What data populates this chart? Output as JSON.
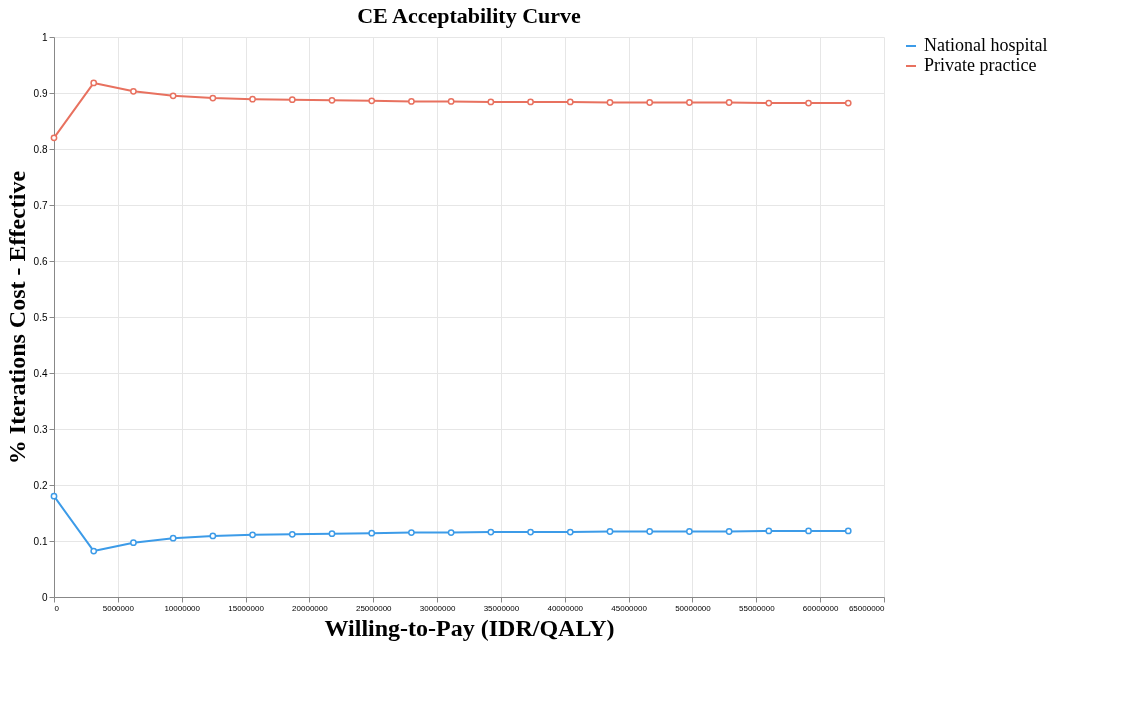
{
  "chart_data": {
    "type": "line",
    "title": "CE Acceptability Curve",
    "xlabel": "Willing-to-Pay (IDR/QALY)",
    "ylabel": "% Iterations Cost - Effective",
    "x": [
      0,
      3110000,
      6220000,
      9330000,
      12440000,
      15550000,
      18660000,
      21770000,
      24880000,
      27990000,
      31100000,
      34210000,
      37320000,
      40430000,
      43540000,
      46650000,
      49760000,
      52870000,
      55980000,
      59090000,
      62200000
    ],
    "series": [
      {
        "name": "National hospital",
        "color": "#3c9be8",
        "values": [
          0.18,
          0.082,
          0.097,
          0.105,
          0.109,
          0.111,
          0.112,
          0.113,
          0.114,
          0.115,
          0.115,
          0.116,
          0.116,
          0.116,
          0.117,
          0.117,
          0.117,
          0.117,
          0.118,
          0.118,
          0.118
        ]
      },
      {
        "name": "Private practice",
        "color": "#e8715f",
        "values": [
          0.82,
          0.918,
          0.903,
          0.895,
          0.891,
          0.889,
          0.888,
          0.887,
          0.886,
          0.885,
          0.885,
          0.884,
          0.884,
          0.884,
          0.883,
          0.883,
          0.883,
          0.883,
          0.882,
          0.882,
          0.882
        ]
      }
    ],
    "xlim": [
      0,
      65000000
    ],
    "xticks": [
      0,
      5000000,
      10000000,
      15000000,
      20000000,
      25000000,
      30000000,
      35000000,
      40000000,
      45000000,
      50000000,
      55000000,
      60000000,
      65000000
    ],
    "ylim": [
      0,
      1
    ],
    "yticks": [
      0,
      0.1,
      0.2,
      0.3,
      0.4,
      0.5,
      0.6,
      0.7,
      0.8,
      0.9,
      1
    ],
    "grid": true,
    "legend": "right",
    "marker": "circle",
    "line_style": "solid"
  }
}
